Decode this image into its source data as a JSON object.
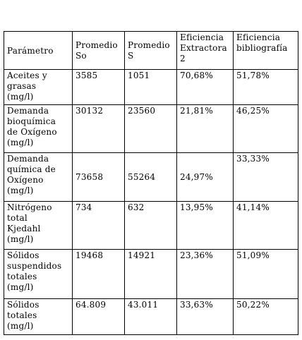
{
  "table": {
    "headers": [
      "Parámetro",
      "Promedio\n So",
      "Promedio\n S",
      "Eficiencia\nExtractora\n 2",
      "Eficiencia\nbibliografía"
    ],
    "rows": [
      [
        "Aceites y\ngrasas\n(mg/l)",
        "3585",
        "1051",
        "70,68%",
        "51,78%"
      ],
      [
        "Demanda\nbioquímica\nde Oxígeno\n(mg/l)",
        "30132",
        "23560",
        "21,81%",
        "46,25%"
      ],
      [
        "Demanda\nquímica de\nOxígeno\n(mg/l)",
        "73658",
        "55264",
        "24,97%",
        "33,33%"
      ],
      [
        "Nitrógeno\ntotal\nKjedahl\n(mg/l)",
        "734",
        "632",
        "13,95%",
        "41,14%"
      ],
      [
        "Sólidos\nsuspendidos\n totales\n(mg/l)",
        "19468",
        "14921",
        "23,36%",
        "51,09%"
      ],
      [
        "Sólidos\ntotales\n(mg/l)",
        "64.809",
        "43.011",
        "33,63%",
        "50,22%"
      ]
    ]
  }
}
